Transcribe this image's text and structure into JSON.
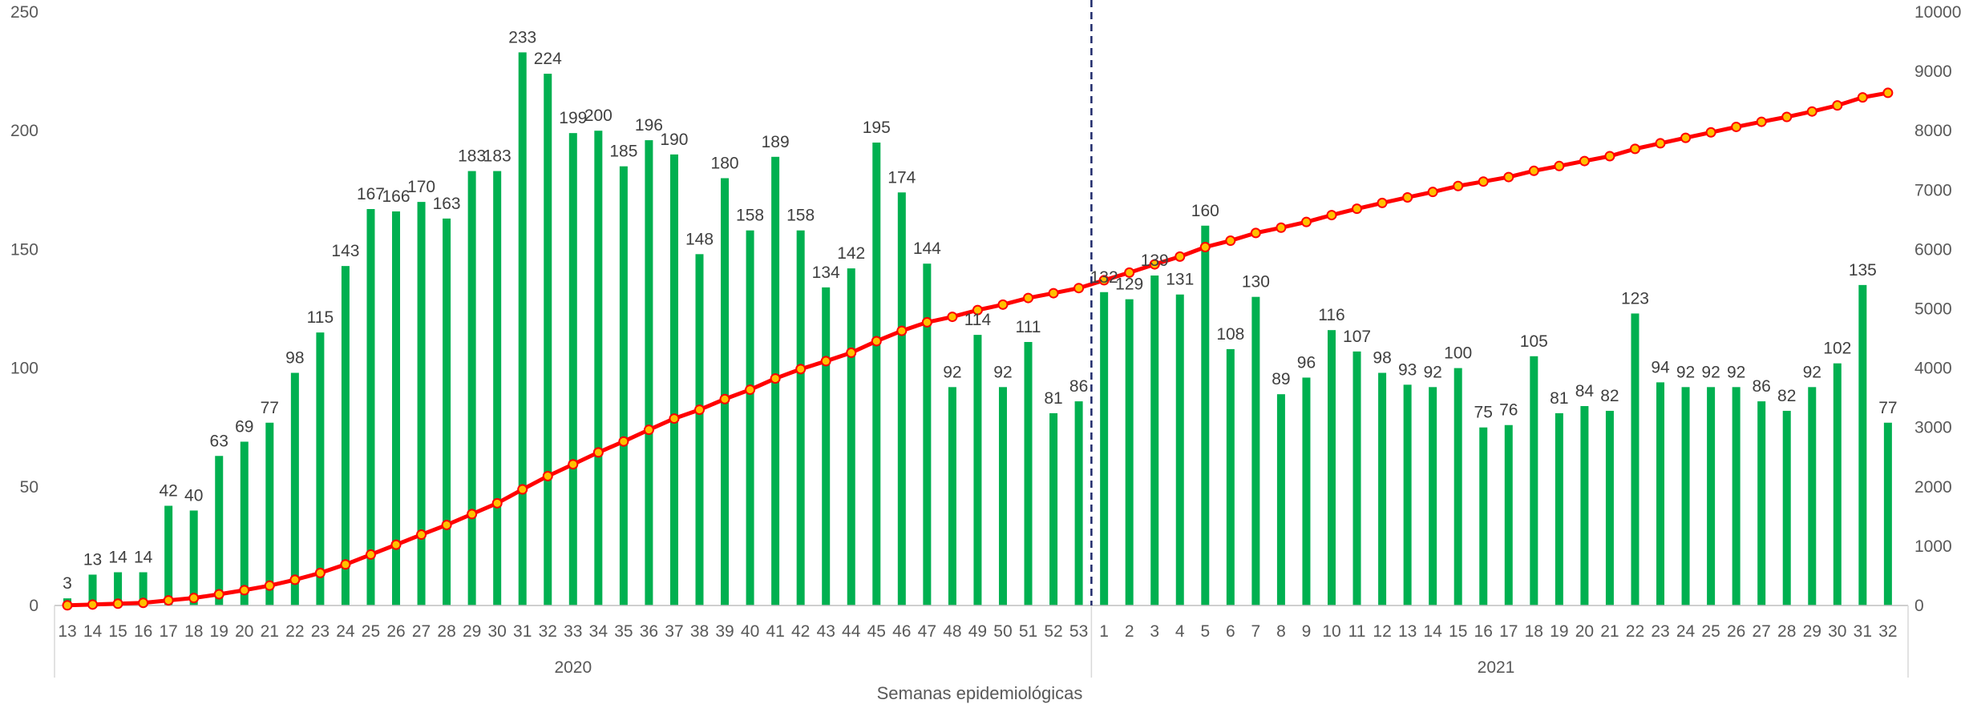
{
  "chart_data": {
    "type": "bar",
    "xlabel": "Semanas epidemiológicas",
    "year_groups": [
      {
        "label": "2020",
        "weeks": [
          "13",
          "14",
          "15",
          "16",
          "17",
          "18",
          "19",
          "20",
          "21",
          "22",
          "23",
          "24",
          "25",
          "26",
          "27",
          "28",
          "29",
          "30",
          "31",
          "32",
          "33",
          "34",
          "35",
          "36",
          "37",
          "38",
          "39",
          "40",
          "41",
          "42",
          "43",
          "44",
          "45",
          "46",
          "47",
          "48",
          "49",
          "50",
          "51",
          "52",
          "53"
        ]
      },
      {
        "label": "2021",
        "weeks": [
          "1",
          "2",
          "3",
          "4",
          "5",
          "6",
          "7",
          "8",
          "9",
          "10",
          "11",
          "12",
          "13",
          "14",
          "15",
          "16",
          "17",
          "18",
          "19",
          "20",
          "21",
          "22",
          "23",
          "24",
          "25",
          "26",
          "27",
          "28",
          "29",
          "30",
          "31",
          "32"
        ]
      }
    ],
    "categories": [
      "13",
      "14",
      "15",
      "16",
      "17",
      "18",
      "19",
      "20",
      "21",
      "22",
      "23",
      "24",
      "25",
      "26",
      "27",
      "28",
      "29",
      "30",
      "31",
      "32",
      "33",
      "34",
      "35",
      "36",
      "37",
      "38",
      "39",
      "40",
      "41",
      "42",
      "43",
      "44",
      "45",
      "46",
      "47",
      "48",
      "49",
      "50",
      "51",
      "52",
      "53",
      "1",
      "2",
      "3",
      "4",
      "5",
      "6",
      "7",
      "8",
      "9",
      "10",
      "11",
      "12",
      "13",
      "14",
      "15",
      "16",
      "17",
      "18",
      "19",
      "20",
      "21",
      "22",
      "23",
      "24",
      "25",
      "26",
      "27",
      "28",
      "29",
      "30",
      "31",
      "32"
    ],
    "series": [
      {
        "type": "bar",
        "axis": "left",
        "color": "#00b050",
        "values": [
          3,
          13,
          14,
          14,
          42,
          40,
          63,
          69,
          77,
          98,
          115,
          143,
          167,
          166,
          170,
          163,
          183,
          183,
          233,
          224,
          199,
          200,
          185,
          196,
          190,
          148,
          180,
          158,
          189,
          158,
          134,
          142,
          195,
          174,
          144,
          92,
          114,
          92,
          111,
          81,
          86,
          132,
          129,
          139,
          131,
          160,
          108,
          130,
          89,
          96,
          116,
          107,
          98,
          93,
          92,
          100,
          75,
          76,
          105,
          81,
          84,
          82,
          123,
          94,
          92,
          92,
          92,
          86,
          82,
          92,
          102,
          135,
          77
        ]
      },
      {
        "type": "line",
        "axis": "right",
        "color": "#ff0000",
        "marker_color": "#ffc000",
        "values": [
          3,
          16,
          30,
          44,
          86,
          126,
          189,
          258,
          335,
          433,
          548,
          691,
          858,
          1024,
          1194,
          1357,
          1540,
          1723,
          1956,
          2180,
          2379,
          2579,
          2764,
          2960,
          3150,
          3298,
          3478,
          3636,
          3825,
          3983,
          4117,
          4259,
          4454,
          4628,
          4772,
          4864,
          4978,
          5070,
          5181,
          5262,
          5348,
          5480,
          5609,
          5748,
          5879,
          6039,
          6147,
          6277,
          6366,
          6462,
          6578,
          6685,
          6783,
          6876,
          6968,
          7068,
          7143,
          7219,
          7324,
          7405,
          7489,
          7571,
          7694,
          7788,
          7880,
          7972,
          8064,
          8150,
          8232,
          8324,
          8426,
          8561,
          8638
        ]
      }
    ],
    "y_left": {
      "min": 0,
      "max": 250,
      "ticks": [
        "0",
        "50",
        "100",
        "150",
        "200",
        "250"
      ]
    },
    "y_right": {
      "min": 0,
      "max": 10000,
      "ticks": [
        "0",
        "1000",
        "2000",
        "3000",
        "4000",
        "5000",
        "6000",
        "7000",
        "8000",
        "9000",
        "10000"
      ]
    },
    "divider": {
      "between": [
        "53",
        "1"
      ],
      "style": "dashed",
      "color": "#1f2a6b"
    },
    "grid": false
  }
}
